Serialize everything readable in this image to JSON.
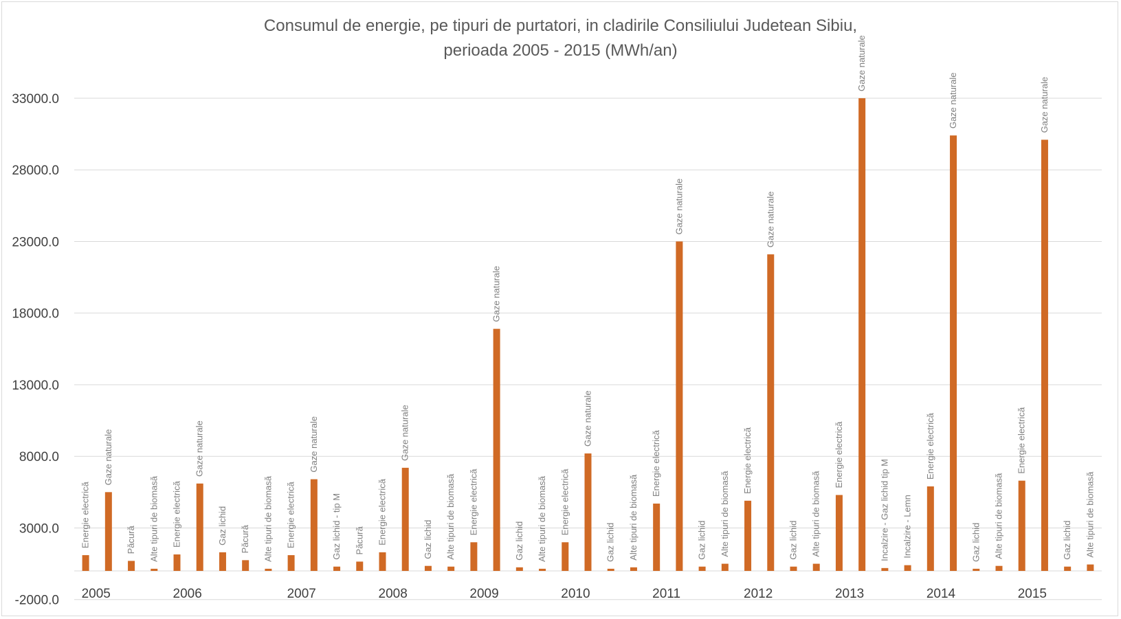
{
  "chart_data": {
    "type": "bar",
    "title": [
      "Consumul de energie, pe tipuri de purtatori, in cladirile Consiliului Judetean Sibiu,",
      "perioada 2005 - 2015 (MWh/an)"
    ],
    "xlabel": "",
    "ylabel": "",
    "ylim": [
      -2000,
      35000
    ],
    "yticks": [
      "-2000.0",
      "3000.0",
      "8000.0",
      "13000.0",
      "18000.0",
      "23000.0",
      "28000.0",
      "33000.0"
    ],
    "grid": true,
    "bar_color": "#d06a25",
    "grid_color": "#d9d9d9",
    "years": [
      "2005",
      "2006",
      "2007",
      "2008",
      "2009",
      "2010",
      "2011",
      "2012",
      "2013",
      "2014",
      "2015"
    ],
    "bars": [
      {
        "label": "Energie electrică",
        "value": 1100,
        "year": "2005"
      },
      {
        "label": "Gaze naturale",
        "value": 5500
      },
      {
        "label": "Păcură",
        "value": 700
      },
      {
        "label": "Alte tipuri de biomasă",
        "value": 150
      },
      {
        "label": "Energie electrică",
        "value": 1150,
        "year": "2006"
      },
      {
        "label": "Gaze naturale",
        "value": 6100
      },
      {
        "label": "Gaz lichid",
        "value": 1300
      },
      {
        "label": "Păcură",
        "value": 750
      },
      {
        "label": "Alte tipuri de biomasă",
        "value": 150
      },
      {
        "label": "Energie electrică",
        "value": 1100,
        "year": "2007"
      },
      {
        "label": "Gaze naturale",
        "value": 6400
      },
      {
        "label": "Gaz lichid - tip M",
        "value": 300
      },
      {
        "label": "Păcură",
        "value": 650
      },
      {
        "label": "Energie electrică",
        "value": 1300,
        "year": "2008"
      },
      {
        "label": "Gaze naturale",
        "value": 7200
      },
      {
        "label": "Gaz lichid",
        "value": 350
      },
      {
        "label": "Alte tipuri de biomasă",
        "value": 300
      },
      {
        "label": "Energie electrică",
        "value": 2000,
        "year": "2009"
      },
      {
        "label": "Gaze naturale",
        "value": 16900
      },
      {
        "label": "Gaz lichid",
        "value": 250
      },
      {
        "label": "Alte tipuri de biomasă",
        "value": 150
      },
      {
        "label": "Energie electrică",
        "value": 2000,
        "year": "2010"
      },
      {
        "label": "Gaze naturale",
        "value": 8200
      },
      {
        "label": "Gaz lichid",
        "value": 150
      },
      {
        "label": "Alte tipuri de biomasă",
        "value": 250
      },
      {
        "label": "Energie electrică",
        "value": 4700,
        "year": "2011"
      },
      {
        "label": "Gaze naturale",
        "value": 23000
      },
      {
        "label": "Gaz lichid",
        "value": 300
      },
      {
        "label": "Alte tipuri de biomasă",
        "value": 500
      },
      {
        "label": "Energie electrică",
        "value": 4900,
        "year": "2012"
      },
      {
        "label": "Gaze naturale",
        "value": 22100
      },
      {
        "label": "Gaz lichid",
        "value": 300
      },
      {
        "label": "Alte tipuri de biomasă",
        "value": 500
      },
      {
        "label": "Energie electrică",
        "value": 5300,
        "year": "2013"
      },
      {
        "label": "Gaze naturale",
        "value": 33000
      },
      {
        "label": "Incalzire - Gaz lichid tip M",
        "value": 200
      },
      {
        "label": "Incalzire - Lemn",
        "value": 400
      },
      {
        "label": "Energie electrică",
        "value": 5900,
        "year": "2014"
      },
      {
        "label": "Gaze naturale",
        "value": 30400
      },
      {
        "label": "Gaz lichid",
        "value": 150
      },
      {
        "label": "Alte tipuri de biomasă",
        "value": 350
      },
      {
        "label": "Energie electrică",
        "value": 6300,
        "year": "2015"
      },
      {
        "label": "Gaze naturale",
        "value": 30100
      },
      {
        "label": "Gaz lichid",
        "value": 300
      },
      {
        "label": "Alte tipuri de biomasă",
        "value": 450
      }
    ]
  }
}
